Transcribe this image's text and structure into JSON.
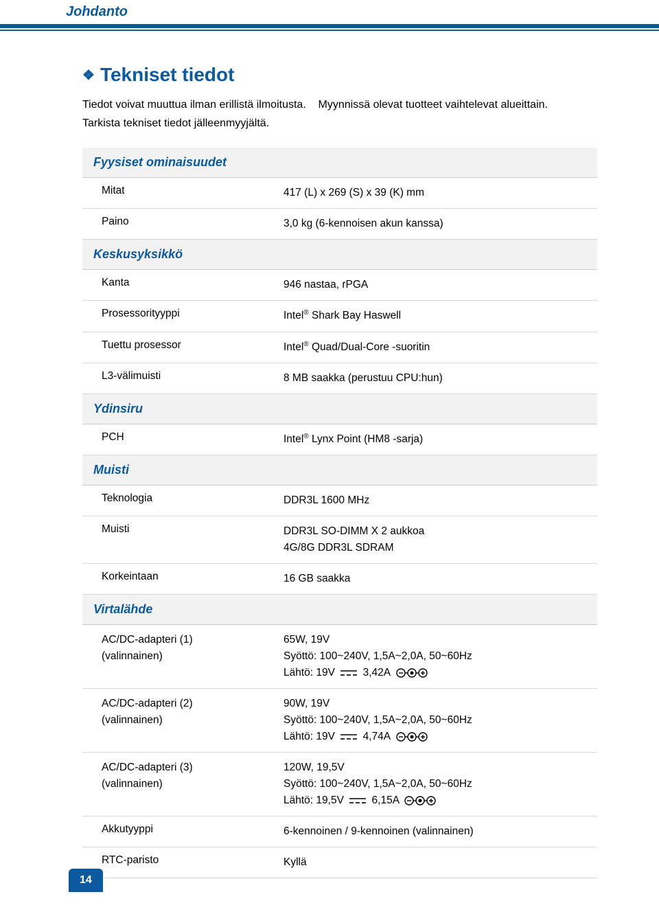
{
  "colors": {
    "brand": "#0b5aa0",
    "row_bg": "#f2f2f2",
    "border": "#d8d8d8",
    "text": "#000000",
    "page_bg": "#ffffff"
  },
  "header": {
    "chapter": "Johdanto"
  },
  "section": {
    "title": "Tekniset tiedot",
    "intro_line1": "Tiedot voivat muuttua ilman erillistä ilmoitusta.",
    "intro_line2": "Myynnissä olevat tuotteet vaihtelevat alueittain.",
    "intro_line3": "Tarkista tekniset tiedot jälleenmyyjältä."
  },
  "table": {
    "type": "spec-table",
    "categories": [
      {
        "name": "Fyysiset ominaisuudet",
        "rows": [
          {
            "label": "Mitat",
            "value": [
              "417 (L) x 269 (S) x 39 (K) mm"
            ]
          },
          {
            "label": "Paino",
            "value": [
              "3,0 kg (6-kennoisen akun kanssa)"
            ]
          }
        ]
      },
      {
        "name": "Keskusyksikkö",
        "rows": [
          {
            "label": "Kanta",
            "value": [
              "946 nastaa, rPGA"
            ]
          },
          {
            "label": "Prosessorityyppi",
            "value": [
              "Intel® Shark Bay Haswell"
            ]
          },
          {
            "label": "Tuettu prosessor",
            "value": [
              "Intel® Quad/Dual-Core -suoritin"
            ]
          },
          {
            "label": "L3-välimuisti",
            "value": [
              "8 MB saakka (perustuu CPU:hun)"
            ]
          }
        ]
      },
      {
        "name": "Ydinsiru",
        "rows": [
          {
            "label": "PCH",
            "value": [
              "Intel® Lynx Point (HM8 -sarja)"
            ]
          }
        ]
      },
      {
        "name": "Muisti",
        "rows": [
          {
            "label": "Teknologia",
            "value": [
              "DDR3L 1600 MHz"
            ]
          },
          {
            "label": "Muisti",
            "value": [
              "DDR3L SO-DIMM X 2 aukkoa",
              "4G/8G DDR3L SDRAM"
            ]
          },
          {
            "label": "Korkeintaan",
            "value": [
              "16 GB saakka"
            ]
          }
        ]
      },
      {
        "name": "Virtalähde",
        "rows": [
          {
            "label_lines": [
              "AC/DC-adapteri (1)",
              "(valinnainen)"
            ],
            "value": [
              "65W, 19V",
              "Syöttö: 100~240V, 1,5A~2,0A, 50~60Hz"
            ],
            "tail": {
              "prefix": "Lähtö: 19V",
              "amp": "3,42A",
              "dc": true,
              "polarity": true
            }
          },
          {
            "label_lines": [
              "AC/DC-adapteri (2)",
              "(valinnainen)"
            ],
            "value": [
              "90W, 19V",
              "Syöttö: 100~240V, 1,5A~2,0A, 50~60Hz"
            ],
            "tail": {
              "prefix": "Lähtö: 19V",
              "amp": "4,74A",
              "dc": true,
              "polarity": true
            }
          },
          {
            "label_lines": [
              "AC/DC-adapteri (3)",
              "(valinnainen)"
            ],
            "value": [
              "120W, 19,5V",
              "Syöttö: 100~240V, 1,5A~2,0A, 50~60Hz"
            ],
            "tail": {
              "prefix": "Lähtö: 19,5V",
              "amp": "6,15A",
              "dc": true,
              "polarity": true
            }
          },
          {
            "label": "Akkutyyppi",
            "value": [
              "6-kennoinen / 9-kennoinen (valinnainen)"
            ]
          },
          {
            "label": "RTC-paristo",
            "value": [
              "Kyllä"
            ]
          }
        ]
      }
    ]
  },
  "page_number": "14"
}
